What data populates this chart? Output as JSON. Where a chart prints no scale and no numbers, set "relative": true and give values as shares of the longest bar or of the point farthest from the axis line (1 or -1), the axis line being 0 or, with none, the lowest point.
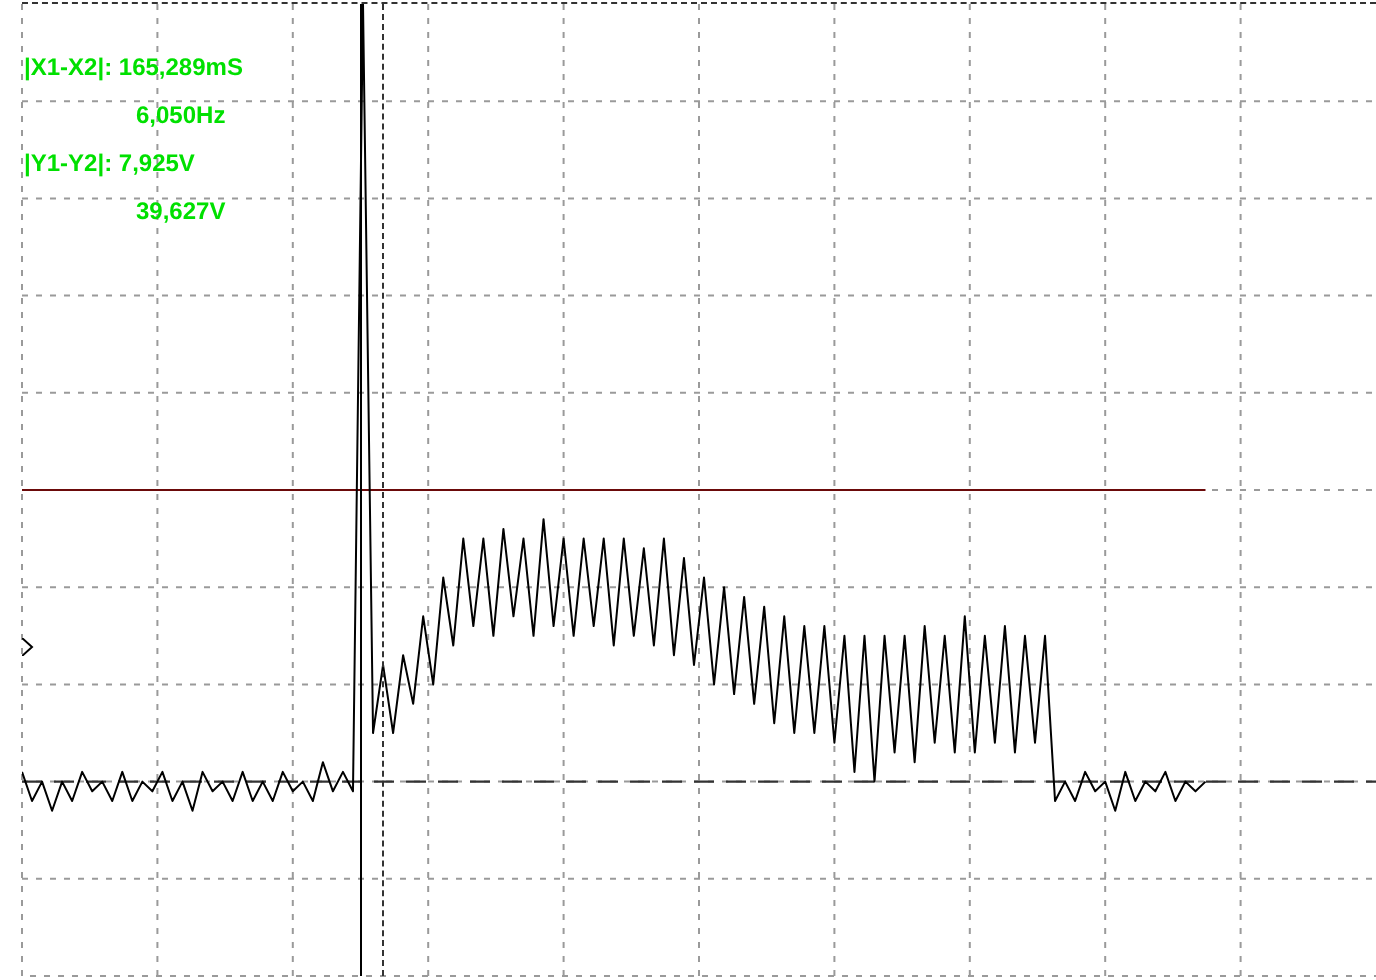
{
  "chart_data": {
    "type": "line",
    "relative": true,
    "grid": true,
    "marker": "none",
    "annotations": [
      "|X1-X2|: 165,289mS",
      "6,050Hz",
      "|Y1-Y2|: 7,925V",
      "39,627V"
    ],
    "categories": [
      null,
      null,
      null,
      null,
      null,
      null,
      null,
      null,
      null,
      null,
      null,
      null,
      null,
      null,
      null,
      null,
      null,
      null,
      null,
      null,
      null,
      null,
      null,
      null,
      null,
      null,
      null,
      null,
      null,
      null,
      null,
      null,
      null,
      null,
      null,
      null,
      null,
      null,
      null,
      null,
      null,
      null,
      null,
      null,
      null,
      null,
      null,
      null,
      null,
      null,
      null,
      null,
      null,
      null,
      null,
      null,
      null,
      null,
      null,
      null,
      null,
      null,
      null,
      null,
      null,
      null,
      null,
      null,
      null,
      null,
      null,
      null,
      null,
      null,
      null,
      null,
      null,
      null,
      null,
      null,
      null,
      null,
      null,
      null,
      null,
      null,
      null,
      null,
      null,
      null,
      null,
      null,
      null,
      null,
      null,
      null,
      null,
      null,
      null,
      null,
      null,
      null,
      null,
      null,
      null,
      null,
      null,
      null,
      null,
      null,
      null,
      null,
      null,
      null,
      null,
      null,
      null,
      null,
      null,
      null,
      null,
      null,
      null,
      null,
      null,
      null,
      null,
      null,
      null,
      null,
      null,
      null,
      null,
      null,
      null,
      null
    ],
    "series": [
      {
        "color": "#000000",
        "values": [
          0.21,
          0.18,
          0.2,
          0.17,
          0.2,
          0.18,
          0.21,
          0.19,
          0.2,
          0.18,
          0.21,
          0.18,
          0.2,
          0.19,
          0.21,
          0.18,
          0.2,
          0.17,
          0.21,
          0.19,
          0.2,
          0.18,
          0.21,
          0.18,
          0.2,
          0.18,
          0.21,
          0.19,
          0.2,
          0.18,
          0.22,
          0.19,
          0.21,
          0.19,
          1,
          0.25,
          0.32,
          0.25,
          0.33,
          0.28,
          0.37,
          0.3,
          0.41,
          0.34,
          0.45,
          0.36,
          0.45,
          0.35,
          0.46,
          0.37,
          0.45,
          0.35,
          0.47,
          0.36,
          0.45,
          0.35,
          0.45,
          0.36,
          0.45,
          0.34,
          0.45,
          0.35,
          0.44,
          0.34,
          0.45,
          0.33,
          0.43,
          0.32,
          0.41,
          0.3,
          0.4,
          0.29,
          0.39,
          0.28,
          0.38,
          0.26,
          0.37,
          0.25,
          0.36,
          0.25,
          0.36,
          0.24,
          0.35,
          0.21,
          0.35,
          0.2,
          0.35,
          0.23,
          0.35,
          0.22,
          0.36,
          0.24,
          0.35,
          0.23,
          0.37,
          0.23,
          0.35,
          0.24,
          0.36,
          0.23,
          0.35,
          0.24,
          0.35,
          0.18,
          0.2,
          0.18,
          0.21,
          0.19,
          0.2,
          0.17,
          0.21,
          0.18,
          0.2,
          0.19,
          0.21,
          0.18,
          0.2,
          0.19,
          0.2,
          null,
          null,
          null,
          null,
          null,
          null,
          null,
          null,
          null,
          null,
          null,
          null,
          null,
          null,
          null,
          null,
          null
        ]
      },
      {
        "color": "#6b0a0a",
        "values": [
          0.5,
          0.5,
          0.5,
          0.5,
          0.5,
          0.5,
          0.5,
          0.5,
          0.5,
          0.5,
          0.5,
          0.5,
          0.5,
          0.5,
          0.5,
          0.5,
          0.5,
          0.5,
          0.5,
          0.5,
          0.5,
          0.5,
          0.5,
          0.5,
          0.5,
          0.5,
          0.5,
          0.5,
          0.5,
          0.5,
          0.5,
          0.5,
          0.5,
          0.5,
          0.5,
          0.5,
          0.5,
          0.5,
          0.5,
          0.5,
          0.5,
          0.5,
          0.5,
          0.5,
          0.5,
          0.5,
          0.5,
          0.5,
          0.5,
          0.5,
          0.5,
          0.5,
          0.5,
          0.5,
          0.5,
          0.5,
          0.5,
          0.5,
          0.5,
          0.5,
          0.5,
          0.5,
          0.5,
          0.5,
          0.5,
          0.5,
          0.5,
          0.5,
          0.5,
          0.5,
          0.5,
          0.5,
          0.5,
          0.5,
          0.5,
          0.5,
          0.5,
          0.5,
          0.5,
          0.5,
          0.5,
          0.5,
          0.5,
          0.5,
          0.5,
          0.5,
          0.5,
          0.5,
          0.5,
          0.5,
          0.5,
          0.5,
          0.5,
          0.5,
          0.5,
          0.5,
          0.5,
          0.5,
          0.5,
          0.5,
          0.5,
          0.5,
          0.5,
          0.5,
          0.5,
          0.5,
          0.5,
          0.5,
          0.5,
          0.5,
          0.5,
          0.5,
          0.5,
          0.5,
          0.5,
          0.5,
          0.5,
          0.5,
          0.5,
          null,
          null,
          null,
          null,
          null,
          null,
          null,
          null,
          null,
          null,
          null,
          null,
          null,
          null,
          null,
          null,
          null
        ]
      }
    ],
    "ref_lines": [
      {
        "axis": "y",
        "value": 0.2,
        "color": "#333333",
        "line_style": "dashed"
      }
    ]
  }
}
